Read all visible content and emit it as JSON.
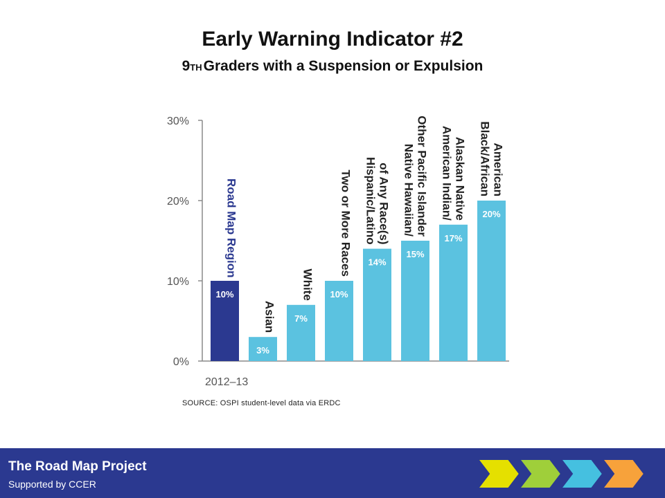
{
  "title": "Early Warning Indicator #2",
  "subtitle": {
    "lead": "9",
    "sup": "TH",
    "rest": "Graders with a Suspension or Expulsion"
  },
  "source": "SOURCE: OSPI student-level data via ERDC",
  "footer": {
    "title": "The Road Map Project",
    "subtitle": "Supported by CCER"
  },
  "chevron_colors": [
    "#e5e000",
    "#9fcf3a",
    "#45c0e0",
    "#f7a23b"
  ],
  "chart_data": {
    "type": "bar",
    "xlabel": "2012–13",
    "ylim": [
      0,
      30
    ],
    "yticks": [
      0,
      10,
      20,
      30
    ],
    "ytick_labels": [
      "0%",
      "10%",
      "20%",
      "30%"
    ],
    "categories": [
      [
        "Road Map Region"
      ],
      [
        "Asian"
      ],
      [
        "White"
      ],
      [
        "Two or More Races"
      ],
      [
        "Hispanic/Latino",
        "of Any Race(s)"
      ],
      [
        "Native Hawaiian/",
        "Other Pacific Islander"
      ],
      [
        "American Indian/",
        "Alaskan Native"
      ],
      [
        "Black/African",
        "American"
      ]
    ],
    "values": [
      10,
      3,
      7,
      10,
      14,
      15,
      17,
      20
    ],
    "value_labels": [
      "10%",
      "3%",
      "7%",
      "10%",
      "14%",
      "15%",
      "17%",
      "20%"
    ],
    "colors": [
      "#2b3990",
      "#5bc2e0",
      "#5bc2e0",
      "#5bc2e0",
      "#5bc2e0",
      "#5bc2e0",
      "#5bc2e0",
      "#5bc2e0"
    ],
    "highlight_label_color": "#2b3990",
    "label_color": "#222222",
    "axis_color": "#8a8a8a"
  }
}
